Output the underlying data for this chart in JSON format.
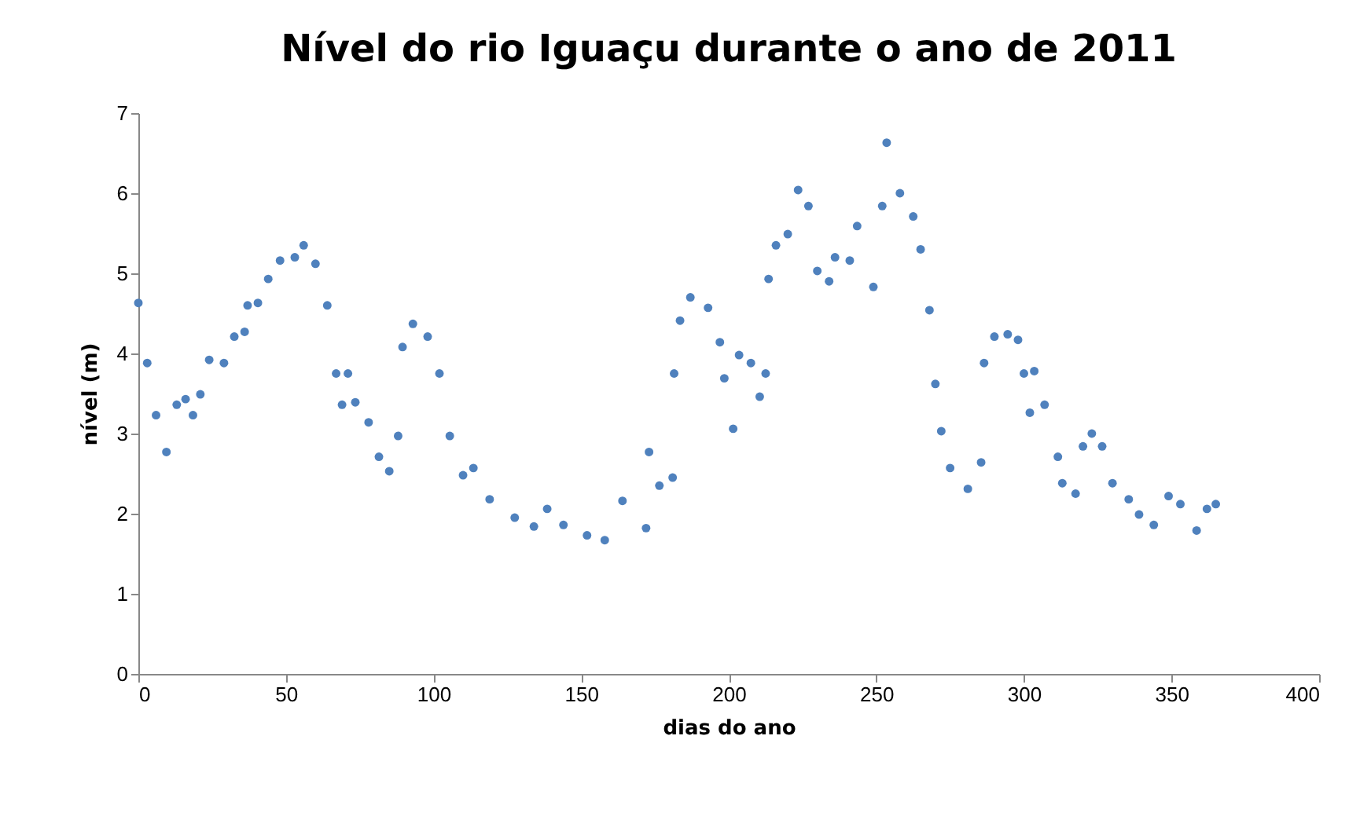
{
  "chart_data": {
    "type": "scatter",
    "title": "Nível do rio Iguaçu durante o ano de 2011",
    "xlabel": "dias do ano",
    "ylabel": "nível (m)",
    "marker": "circle",
    "grid": false,
    "xlim": [
      0,
      400
    ],
    "xticks": [
      0,
      50,
      100,
      150,
      200,
      250,
      300,
      350,
      400
    ],
    "ylim": [
      0,
      7
    ],
    "yticks": [
      0,
      1,
      2,
      3,
      4,
      5,
      6,
      7
    ],
    "series": [
      {
        "color": "#4f81bd",
        "x": [
          0,
          3,
          6,
          9.5,
          13,
          16,
          18.5,
          21,
          24,
          29,
          32.5,
          36,
          37,
          40.5,
          44,
          48,
          53,
          56,
          60,
          64,
          67,
          69,
          71,
          73.5,
          78,
          81.5,
          85,
          88,
          89.5,
          93,
          98,
          102,
          105.5,
          110,
          113.5,
          119,
          127.5,
          134,
          138.5,
          144,
          152,
          158,
          164,
          172,
          173,
          176.5,
          181,
          181.5,
          183.5,
          187,
          193,
          197,
          198.5,
          201.5,
          203.5,
          207.5,
          210.5,
          212.5,
          213.5,
          216,
          220,
          223.5,
          227,
          230,
          234,
          236,
          241,
          243.5,
          249,
          252,
          253.5,
          258,
          262.5,
          265,
          268,
          270,
          272,
          275,
          281,
          285.5,
          286.5,
          290,
          294.5,
          298,
          300,
          302,
          303.5,
          307,
          311.5,
          313,
          317.5,
          320,
          323,
          326.5,
          330,
          335.5,
          339,
          344,
          349,
          353,
          358.5,
          362,
          365
        ],
        "values": [
          4.63,
          3.88,
          3.23,
          2.77,
          3.36,
          3.43,
          3.23,
          3.49,
          3.92,
          3.88,
          4.21,
          4.27,
          4.6,
          4.63,
          4.93,
          5.16,
          5.2,
          5.35,
          5.12,
          4.6,
          3.75,
          3.36,
          3.75,
          3.39,
          3.14,
          2.71,
          2.53,
          2.97,
          4.08,
          4.37,
          4.21,
          3.75,
          2.97,
          2.48,
          2.57,
          2.18,
          1.95,
          1.84,
          2.06,
          1.86,
          1.73,
          1.67,
          2.16,
          1.82,
          2.77,
          2.35,
          2.45,
          3.75,
          4.41,
          4.7,
          4.57,
          4.14,
          3.69,
          3.06,
          3.98,
          3.88,
          3.46,
          3.75,
          4.93,
          5.35,
          5.49,
          6.04,
          5.84,
          5.03,
          4.9,
          5.2,
          5.16,
          5.59,
          4.83,
          5.84,
          6.63,
          6.0,
          5.71,
          5.3,
          4.54,
          3.62,
          3.03,
          2.57,
          2.31,
          2.64,
          3.88,
          4.21,
          4.24,
          4.17,
          3.75,
          3.26,
          3.78,
          3.36,
          2.71,
          2.38,
          2.25,
          2.84,
          3.0,
          2.84,
          2.38,
          2.18,
          1.99,
          1.86,
          2.22,
          2.12,
          1.79,
          2.06,
          2.12
        ]
      }
    ]
  }
}
